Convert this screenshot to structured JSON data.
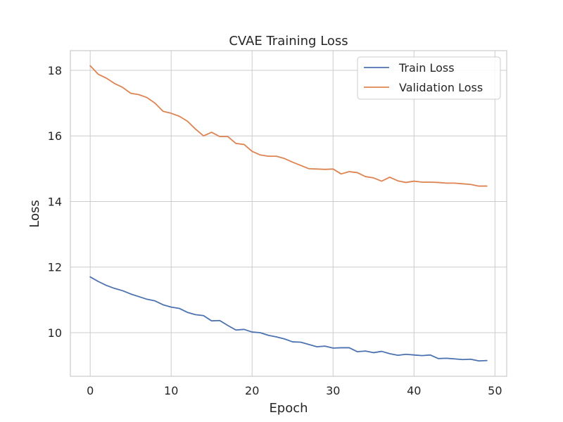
{
  "chart_data": {
    "type": "line",
    "title": "CVAE Training Loss",
    "xlabel": "Epoch",
    "ylabel": "Loss",
    "xlim": [
      -2.45,
      51.45
    ],
    "ylim": [
      8.67,
      18.6
    ],
    "xticks": [
      0,
      10,
      20,
      30,
      40,
      50
    ],
    "yticks": [
      10,
      12,
      14,
      16,
      18
    ],
    "grid": true,
    "legend": "top-right",
    "series": [
      {
        "name": "Train Loss",
        "color": "#4c72b0",
        "x": [
          0,
          1,
          2,
          3,
          4,
          5,
          6,
          7,
          8,
          9,
          10,
          11,
          12,
          13,
          14,
          15,
          16,
          17,
          18,
          19,
          20,
          21,
          22,
          23,
          24,
          25,
          26,
          27,
          28,
          29,
          30,
          31,
          32,
          33,
          34,
          35,
          36,
          37,
          38,
          39,
          40,
          41,
          42,
          43,
          44,
          45,
          46,
          47,
          48,
          49
        ],
        "y": [
          11.7,
          11.56,
          11.44,
          11.35,
          11.28,
          11.18,
          11.1,
          11.02,
          10.97,
          10.85,
          10.78,
          10.74,
          10.62,
          10.55,
          10.52,
          10.36,
          10.37,
          10.22,
          10.08,
          10.1,
          10.02,
          10.0,
          9.92,
          9.87,
          9.81,
          9.72,
          9.71,
          9.64,
          9.57,
          9.59,
          9.53,
          9.54,
          9.54,
          9.42,
          9.44,
          9.39,
          9.43,
          9.36,
          9.31,
          9.34,
          9.32,
          9.3,
          9.32,
          9.21,
          9.22,
          9.2,
          9.18,
          9.19,
          9.14,
          9.15
        ]
      },
      {
        "name": "Validation Loss",
        "color": "#dd8452",
        "x": [
          0,
          1,
          2,
          3,
          4,
          5,
          6,
          7,
          8,
          9,
          10,
          11,
          12,
          13,
          14,
          15,
          16,
          17,
          18,
          19,
          20,
          21,
          22,
          23,
          24,
          25,
          26,
          27,
          28,
          29,
          30,
          31,
          32,
          33,
          34,
          35,
          36,
          37,
          38,
          39,
          40,
          41,
          42,
          43,
          44,
          45,
          46,
          47,
          48,
          49
        ],
        "y": [
          18.14,
          17.88,
          17.76,
          17.6,
          17.48,
          17.3,
          17.26,
          17.17,
          17.0,
          16.75,
          16.69,
          16.6,
          16.45,
          16.21,
          16.0,
          16.11,
          15.98,
          15.98,
          15.77,
          15.74,
          15.53,
          15.42,
          15.38,
          15.38,
          15.31,
          15.2,
          15.1,
          15.0,
          14.99,
          14.98,
          14.99,
          14.84,
          14.91,
          14.88,
          14.76,
          14.72,
          14.62,
          14.74,
          14.63,
          14.58,
          14.62,
          14.59,
          14.59,
          14.58,
          14.56,
          14.56,
          14.54,
          14.52,
          14.47,
          14.47
        ]
      }
    ]
  }
}
